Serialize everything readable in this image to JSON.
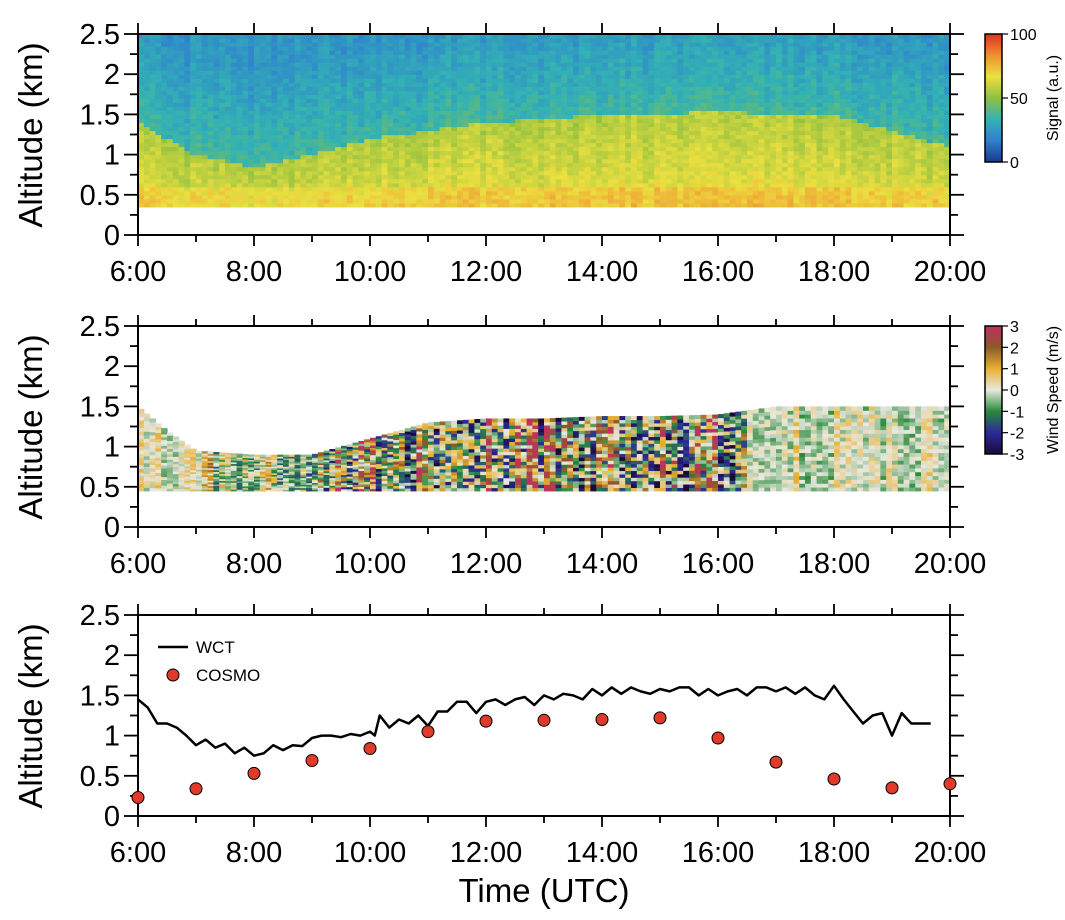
{
  "chart_data": [
    {
      "type": "heatmap",
      "ylabel": "Altitude (km)",
      "xlim": [
        "6:00",
        "20:00"
      ],
      "ylim": [
        0,
        2.5
      ],
      "x_ticks": [
        "6:00",
        "8:00",
        "10:00",
        "12:00",
        "14:00",
        "16:00",
        "18:00",
        "20:00"
      ],
      "y_ticks": [
        "0",
        "0.5",
        "1",
        "1.5",
        "2",
        "2.5"
      ],
      "colorbar": {
        "label": "Signal (a.u.)",
        "ticks": [
          "0",
          "50",
          "100"
        ],
        "range": [
          0,
          100
        ],
        "colors": [
          "#1a3a8c",
          "#2f7fd0",
          "#33b3b3",
          "#8fc040",
          "#ece040",
          "#f09030",
          "#e03020"
        ]
      },
      "data_bottom_km": 0.35,
      "data_top_km": 2.5,
      "boundary_layer_top_km": [
        [
          "6:00",
          1.4
        ],
        [
          "7:00",
          1.0
        ],
        [
          "8:00",
          0.85
        ],
        [
          "9:00",
          1.0
        ],
        [
          "10:00",
          1.2
        ],
        [
          "11:00",
          1.3
        ],
        [
          "12:00",
          1.4
        ],
        [
          "13:00",
          1.45
        ],
        [
          "14:00",
          1.5
        ],
        [
          "15:00",
          1.5
        ],
        [
          "16:00",
          1.55
        ],
        [
          "17:00",
          1.5
        ],
        [
          "18:00",
          1.5
        ],
        [
          "19:00",
          1.3
        ],
        [
          "20:00",
          1.1
        ]
      ]
    },
    {
      "type": "heatmap",
      "ylabel": "Altitude (km)",
      "xlim": [
        "6:00",
        "20:00"
      ],
      "ylim": [
        0,
        2.5
      ],
      "x_ticks": [
        "6:00",
        "8:00",
        "10:00",
        "12:00",
        "14:00",
        "16:00",
        "18:00",
        "20:00"
      ],
      "y_ticks": [
        "0",
        "0.5",
        "1",
        "1.5",
        "2",
        "2.5"
      ],
      "colorbar": {
        "label": "Wind Speed (m/s)",
        "ticks": [
          "-3",
          "-2",
          "-1",
          "0",
          "1",
          "2",
          "3"
        ],
        "range": [
          -3,
          3
        ],
        "colors": [
          "#1a0a3a",
          "#2b2a9a",
          "#2a8a3a",
          "#e8e8e0",
          "#e8b030",
          "#8a5a2a",
          "#c03060"
        ]
      },
      "data_bottom_km": 0.45,
      "data_top_km": [
        [
          "6:00",
          1.5
        ],
        [
          "6:30",
          1.2
        ],
        [
          "7:00",
          0.95
        ],
        [
          "8:00",
          0.9
        ],
        [
          "9:00",
          0.9
        ],
        [
          "10:00",
          1.1
        ],
        [
          "11:00",
          1.3
        ],
        [
          "12:00",
          1.35
        ],
        [
          "13:00",
          1.35
        ],
        [
          "14:00",
          1.38
        ],
        [
          "15:00",
          1.38
        ],
        [
          "16:00",
          1.4
        ],
        [
          "17:00",
          1.5
        ],
        [
          "18:00",
          1.5
        ],
        [
          "19:00",
          1.5
        ],
        [
          "20:00",
          1.5
        ]
      ]
    },
    {
      "type": "line",
      "xlabel": "Time (UTC)",
      "ylabel": "Altitude (km)",
      "xlim": [
        "6:00",
        "20:00"
      ],
      "ylim": [
        0,
        2.5
      ],
      "x_ticks": [
        "6:00",
        "8:00",
        "10:00",
        "12:00",
        "14:00",
        "16:00",
        "18:00",
        "20:00"
      ],
      "y_ticks": [
        "0",
        "0.5",
        "1",
        "1.5",
        "2",
        "2.5"
      ],
      "legend_position": "top-left",
      "series": [
        {
          "name": "WCT",
          "style": "line",
          "color": "#000000",
          "x": [
            "6:00",
            "6:10",
            "6:20",
            "6:30",
            "6:40",
            "6:50",
            "7:00",
            "7:10",
            "7:20",
            "7:30",
            "7:40",
            "7:50",
            "8:00",
            "8:10",
            "8:20",
            "8:30",
            "8:40",
            "8:50",
            "9:00",
            "9:10",
            "9:20",
            "9:30",
            "9:40",
            "9:50",
            "10:00",
            "10:05",
            "10:10",
            "10:20",
            "10:30",
            "10:40",
            "10:50",
            "11:00",
            "11:10",
            "11:20",
            "11:30",
            "11:40",
            "11:50",
            "12:00",
            "12:10",
            "12:20",
            "12:30",
            "12:40",
            "12:50",
            "13:00",
            "13:10",
            "13:20",
            "13:30",
            "13:40",
            "13:50",
            "14:00",
            "14:10",
            "14:20",
            "14:30",
            "14:40",
            "14:50",
            "15:00",
            "15:10",
            "15:20",
            "15:30",
            "15:40",
            "15:50",
            "16:00",
            "16:10",
            "16:20",
            "16:30",
            "16:40",
            "16:50",
            "17:00",
            "17:10",
            "17:20",
            "17:30",
            "17:40",
            "17:50",
            "18:00",
            "18:10",
            "18:20",
            "18:30",
            "18:40",
            "18:50",
            "19:00",
            "19:10",
            "19:20",
            "19:30",
            "19:40"
          ],
          "values": [
            1.45,
            1.35,
            1.15,
            1.15,
            1.1,
            1.0,
            0.88,
            0.95,
            0.85,
            0.9,
            0.78,
            0.85,
            0.75,
            0.78,
            0.88,
            0.82,
            0.88,
            0.87,
            0.97,
            1.0,
            1.0,
            0.98,
            1.02,
            1.0,
            1.05,
            1.0,
            1.25,
            1.1,
            1.2,
            1.15,
            1.25,
            1.12,
            1.3,
            1.3,
            1.42,
            1.42,
            1.28,
            1.42,
            1.45,
            1.38,
            1.45,
            1.48,
            1.38,
            1.5,
            1.45,
            1.52,
            1.5,
            1.45,
            1.58,
            1.5,
            1.6,
            1.52,
            1.6,
            1.55,
            1.52,
            1.58,
            1.55,
            1.6,
            1.6,
            1.5,
            1.58,
            1.5,
            1.55,
            1.58,
            1.5,
            1.6,
            1.6,
            1.55,
            1.6,
            1.52,
            1.6,
            1.5,
            1.45,
            1.62,
            1.45,
            1.3,
            1.15,
            1.25,
            1.28,
            1.0,
            1.28,
            1.15,
            1.15,
            1.15
          ]
        },
        {
          "name": "COSMO",
          "style": "marker",
          "color": "#e03a2a",
          "x": [
            "6:00",
            "7:00",
            "8:00",
            "9:00",
            "10:00",
            "11:00",
            "12:00",
            "13:00",
            "14:00",
            "15:00",
            "16:00",
            "17:00",
            "18:00",
            "19:00",
            "20:00"
          ],
          "values": [
            0.23,
            0.34,
            0.53,
            0.69,
            0.84,
            1.05,
            1.18,
            1.19,
            1.2,
            1.22,
            0.97,
            0.67,
            0.46,
            0.35,
            0.4
          ]
        }
      ]
    }
  ]
}
